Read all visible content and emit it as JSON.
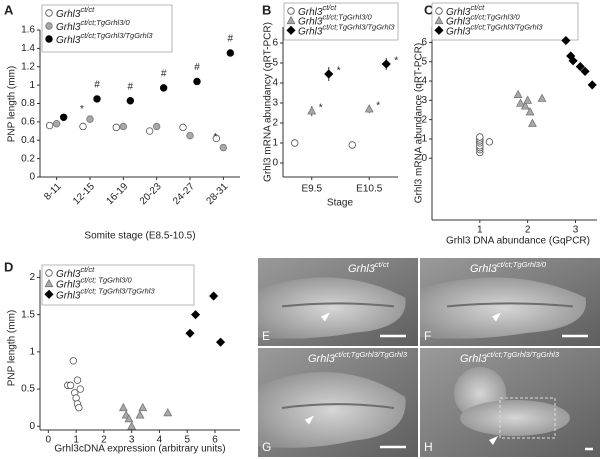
{
  "chart_data": [
    {
      "panel": "A",
      "type": "dot",
      "y_label": "PNP length (mm)",
      "x_label": "Somite stage (E8.5-10.5)",
      "categories": [
        "8-11",
        "12-15",
        "16-19",
        "20-23",
        "24-27",
        "28-31"
      ],
      "ylim": [
        0,
        1.6
      ],
      "yticks": [
        0,
        0.2,
        0.4,
        0.6,
        0.8,
        1,
        1.2,
        1.4,
        1.6
      ],
      "series": [
        {
          "name": "Grhl3",
          "genotype": "ct/ct",
          "color": "#ffffff",
          "marker": "circle",
          "values": [
            0.56,
            0.55,
            0.54,
            0.5,
            0.54,
            0.42
          ]
        },
        {
          "name": "Grhl3",
          "genotype": "ct/ct;TgGrhl3/0",
          "color": "#a8a8a8",
          "marker": "circle",
          "values": [
            0.58,
            0.63,
            0.55,
            0.55,
            0.45,
            0.32
          ],
          "flags": [
            null,
            "*",
            null,
            null,
            null,
            "*"
          ]
        },
        {
          "name": "Grhl3",
          "genotype": "ct/ct;TgGrhl3/TgGrhl3",
          "color": "#000000",
          "marker": "circle",
          "values": [
            0.65,
            0.85,
            0.83,
            0.97,
            1.04,
            1.35
          ],
          "flags": [
            null,
            "#",
            "#",
            "#",
            "#",
            "#"
          ]
        }
      ]
    },
    {
      "panel": "B",
      "type": "dot",
      "y_label": "Grhl3 mRNA abundancy (qRT-PCR)",
      "x_label": "Stage",
      "categories": [
        "E9.5",
        "E10.5"
      ],
      "ylim": [
        -0.7,
        6.8
      ],
      "yticks": [
        0,
        1,
        2,
        3,
        4,
        5,
        6
      ],
      "series": [
        {
          "name": "Grhl3",
          "genotype": "ct/ct",
          "color": "#ffffff",
          "marker": "circle",
          "values": [
            1.0,
            0.9
          ]
        },
        {
          "name": "Grhl3",
          "genotype": "ct/ct;TgGrhl3/0",
          "color": "#a8a8a8",
          "marker": "triangle",
          "values": [
            2.6,
            2.7
          ],
          "errors": [
            0.25,
            0.2
          ],
          "flags": [
            "*",
            "*"
          ]
        },
        {
          "name": "Grhl3",
          "genotype": "ct/ct;TgGrhl3/TgGrhl3",
          "color": "#000000",
          "marker": "diamond",
          "values": [
            4.45,
            4.95
          ],
          "errors": [
            0.35,
            0.3
          ],
          "flags": [
            "*",
            "*"
          ]
        }
      ]
    },
    {
      "panel": "C",
      "type": "scatter",
      "y_label": "Grhl3 mRNA abundance (qRT-PCR)",
      "x_label": "Grhl3 DNA  abundance (GqPCR)",
      "xlim": [
        0,
        3.45
      ],
      "xticks": [
        1,
        2,
        3
      ],
      "ylim": [
        -3.2,
        6.8
      ],
      "yticks": [
        0,
        1,
        2,
        3,
        4,
        5,
        6
      ],
      "series": [
        {
          "name": "Grhl3",
          "genotype": "ct/ct",
          "color": "#ffffff",
          "marker": "circle",
          "x": [
            1,
            1,
            1,
            1,
            1,
            1,
            1,
            1,
            1.2
          ],
          "values": [
            0.3,
            0.45,
            0.55,
            0.65,
            0.8,
            0.9,
            1.0,
            1.1,
            0.85
          ]
        },
        {
          "name": "Grhl3",
          "genotype": "ct/ct;TgGrhl3/0",
          "color": "#a8a8a8",
          "marker": "triangle",
          "x": [
            1.8,
            1.85,
            1.95,
            2.0,
            2.05,
            2.1,
            2.3
          ],
          "values": [
            3.3,
            2.85,
            2.7,
            3.0,
            2.4,
            1.8,
            3.1
          ]
        },
        {
          "name": "Grhl3",
          "genotype": "ct/ct;TgGrhl3/TgGrhl3",
          "color": "#000000",
          "marker": "diamond",
          "x": [
            2.8,
            2.9,
            2.95,
            3.1,
            3.2,
            3.35
          ],
          "values": [
            6.1,
            5.3,
            5.05,
            4.75,
            4.5,
            3.8
          ]
        }
      ]
    },
    {
      "panel": "D",
      "type": "scatter",
      "y_label": "PNP length (mm)",
      "x_label": "Grhl3cDNA expression (arbitrary units)",
      "xlim": [
        -0.3,
        6.9
      ],
      "xticks": [
        0,
        1,
        2,
        3,
        4,
        5,
        6
      ],
      "ylim": [
        -0.05,
        2.1
      ],
      "yticks": [
        0,
        0.5,
        1,
        1.5,
        2
      ],
      "series": [
        {
          "name": "Grhl3",
          "genotype": "ct/ct",
          "color": "#ffffff",
          "marker": "circle",
          "x": [
            0.7,
            0.8,
            0.9,
            0.95,
            1.0,
            1.05,
            1.05,
            1.1,
            1.15
          ],
          "values": [
            0.55,
            0.55,
            0.88,
            0.45,
            0.38,
            0.62,
            0.3,
            0.25,
            0.5
          ]
        },
        {
          "name": "Grhl3",
          "genotype": "ct/ct; TgGrhl3/0",
          "color": "#a8a8a8",
          "marker": "triangle",
          "x": [
            2.7,
            2.8,
            2.9,
            3.0,
            3.3,
            3.4,
            4.3
          ],
          "values": [
            0.25,
            0.15,
            0.1,
            0.0,
            0.15,
            0.25,
            0.18
          ]
        },
        {
          "name": "Grhl3",
          "genotype": "ct/ct; TgGrhl3/TgGrhl3",
          "color": "#000000",
          "marker": "diamond",
          "x": [
            5.1,
            5.3,
            5.95,
            6.2
          ],
          "values": [
            1.25,
            1.5,
            1.75,
            1.13
          ]
        }
      ]
    }
  ],
  "images": [
    {
      "panel": "E",
      "name": "Grhl3",
      "genotype": "ct/ct"
    },
    {
      "panel": "F",
      "name": "Grhl3",
      "genotype": "ct/ct;TgGrhl3/0"
    },
    {
      "panel": "G",
      "name": "Grhl3",
      "genotype": "ct/ct;TgGrhl3/TgGrhl3"
    },
    {
      "panel": "H",
      "name": "Grhl3",
      "genotype": "ct/ct;TgGrhl3/TgGrhl3"
    }
  ]
}
